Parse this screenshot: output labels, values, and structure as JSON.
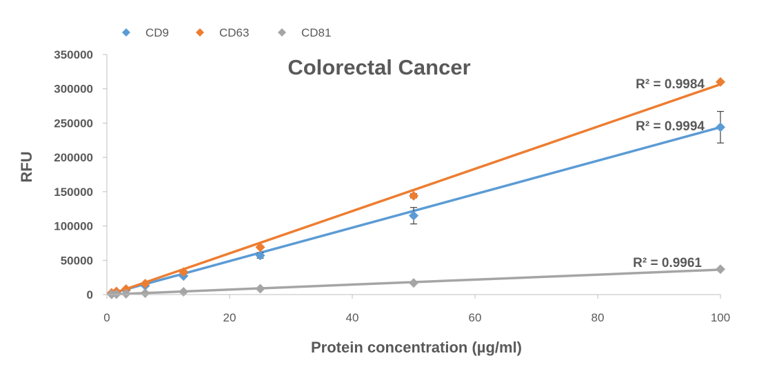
{
  "chart_data": {
    "type": "scatter",
    "title": "Colorectal Cancer",
    "xlabel": "Protein concentration (µg/ml)",
    "ylabel": "RFU",
    "xlim": [
      0,
      100
    ],
    "ylim": [
      0,
      350000
    ],
    "xticks": [
      0,
      20,
      40,
      60,
      80,
      100
    ],
    "yticks": [
      0,
      50000,
      100000,
      150000,
      200000,
      250000,
      300000,
      350000
    ],
    "grid": false,
    "legend_position": "top-left",
    "series": [
      {
        "name": "CD9",
        "color": "#5B9BD5",
        "trendline": {
          "slope": 2440,
          "intercept": 0,
          "r2_label": "R² = 0.9994"
        },
        "points": [
          {
            "x": 0.78,
            "y": 2000
          },
          {
            "x": 1.56,
            "y": 3500
          },
          {
            "x": 3.13,
            "y": 6500
          },
          {
            "x": 6.25,
            "y": 13000
          },
          {
            "x": 12.5,
            "y": 27000
          },
          {
            "x": 25,
            "y": 57000,
            "err": 4000
          },
          {
            "x": 50,
            "y": 115000,
            "err": 12000
          },
          {
            "x": 100,
            "y": 244000,
            "err": 23000
          }
        ]
      },
      {
        "name": "CD63",
        "color": "#ED7D31",
        "trendline": {
          "slope": 3080,
          "intercept": -1500,
          "r2_label": "R² = 0.9984"
        },
        "points": [
          {
            "x": 0.78,
            "y": 2500
          },
          {
            "x": 1.56,
            "y": 4500
          },
          {
            "x": 3.13,
            "y": 8000
          },
          {
            "x": 6.25,
            "y": 16000
          },
          {
            "x": 12.5,
            "y": 33000
          },
          {
            "x": 25,
            "y": 69000
          },
          {
            "x": 50,
            "y": 144000,
            "err": 3000
          },
          {
            "x": 100,
            "y": 310000
          }
        ]
      },
      {
        "name": "CD81",
        "color": "#A5A5A5",
        "trendline": {
          "slope": 363,
          "intercept": 0,
          "r2_label": "R² = 0.9961"
        },
        "points": [
          {
            "x": 0.78,
            "y": 300
          },
          {
            "x": 1.56,
            "y": 600
          },
          {
            "x": 3.13,
            "y": 1100
          },
          {
            "x": 6.25,
            "y": 2000
          },
          {
            "x": 12.5,
            "y": 4000
          },
          {
            "x": 25,
            "y": 8500
          },
          {
            "x": 50,
            "y": 17000
          },
          {
            "x": 100,
            "y": 37000
          }
        ]
      }
    ]
  }
}
